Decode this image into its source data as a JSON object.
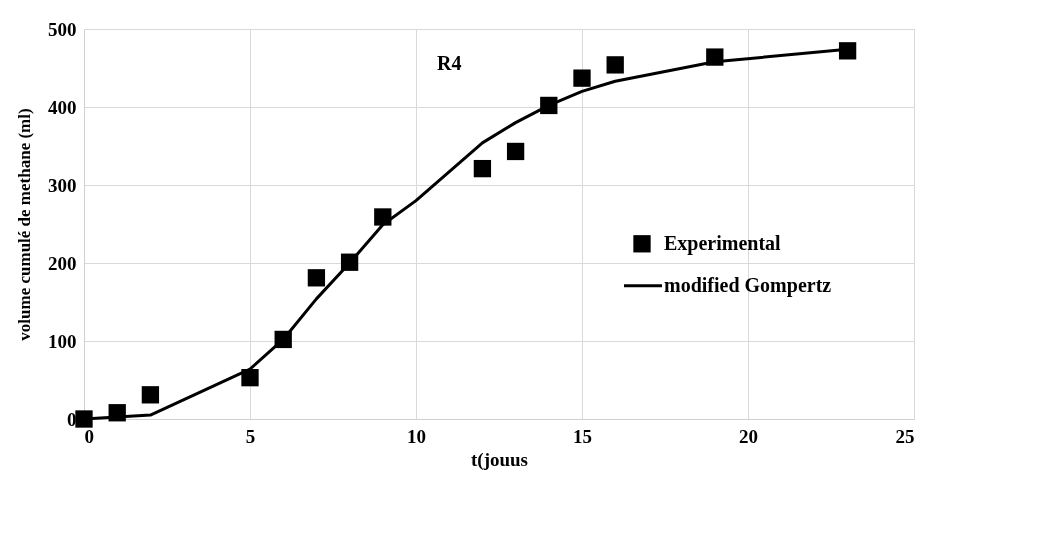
{
  "chart_data": {
    "type": "scatter",
    "xlabel": "t(jouus",
    "ylabel": "volume cumulé de methane (ml)",
    "annotations": [
      "R4"
    ],
    "xlim": [
      0,
      25
    ],
    "xticks": [
      0,
      5,
      10,
      15,
      20,
      25
    ],
    "ylim": [
      0,
      500
    ],
    "yticks": [
      0,
      100,
      200,
      300,
      400,
      500
    ],
    "grid": true,
    "legend": "right",
    "series": [
      {
        "name": "Experimental",
        "marker": "square",
        "color": "#000000",
        "x": [
          0,
          1,
          2,
          5,
          6,
          7,
          8,
          9,
          12,
          13,
          14,
          15,
          16,
          19,
          23
        ],
        "values": [
          0,
          8,
          31,
          53,
          102,
          181,
          201,
          259,
          321,
          343,
          402,
          437,
          454,
          464,
          472
        ]
      },
      {
        "name": "modified Gompertz",
        "type": "line",
        "marker": "none",
        "line_style": "solid",
        "color": "#000000",
        "x": [
          0,
          2,
          5,
          6,
          7,
          8,
          9,
          10,
          12,
          13,
          14,
          15,
          16,
          19,
          23
        ],
        "values": [
          0,
          5,
          64,
          102,
          154,
          200,
          249,
          280,
          354,
          380,
          402,
          420,
          433,
          458,
          474
        ]
      }
    ]
  }
}
